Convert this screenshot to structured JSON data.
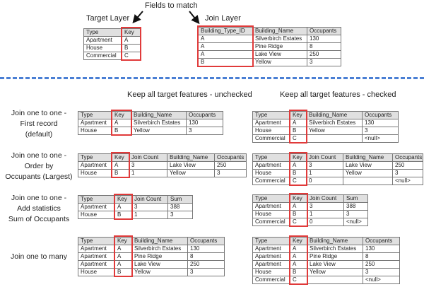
{
  "header": {
    "fields_to_match": "Fields to match",
    "target_layer": "Target Layer",
    "join_layer": "Join Layer"
  },
  "sections": {
    "unchecked": "Keep all target features - unchecked",
    "checked": "Keep all target features - checked"
  },
  "row_labels": [
    [
      "Join one to one -",
      "First record",
      "(default)"
    ],
    [
      "Join one to one -",
      "Order by",
      "Occupants (Largest)"
    ],
    [
      "Join one to one -",
      "Add statistics",
      "Sum of Occupants"
    ],
    [
      "Join one to many"
    ]
  ],
  "colors": {
    "highlight": "#e03a3a",
    "divider": "#4a7fd4",
    "header_bg": "#e0e0e0"
  },
  "tables": {
    "target": {
      "columns": [
        "Type",
        "Key"
      ],
      "rows": [
        [
          "Apartment",
          "A"
        ],
        [
          "House",
          "B"
        ],
        [
          "Commercial",
          "C"
        ]
      ]
    },
    "join": {
      "columns": [
        "Building_Type_ID",
        "Building_Name",
        "Occupants"
      ],
      "rows": [
        [
          "A",
          "Silverbirch Estates",
          "130"
        ],
        [
          "A",
          "Pine Ridge",
          "8"
        ],
        [
          "A",
          "Lake View",
          "250"
        ],
        [
          "B",
          "Yellow",
          "3"
        ]
      ]
    },
    "first_unchecked": {
      "columns": [
        "Type",
        "Key",
        "Building_Name",
        "Occupants"
      ],
      "rows": [
        [
          "Apartment",
          "A",
          "Silverbirch Estates",
          "130"
        ],
        [
          "House",
          "B",
          "Yellow",
          "3"
        ]
      ]
    },
    "first_checked": {
      "columns": [
        "Type",
        "Key",
        "Building_Name",
        "Occupants"
      ],
      "rows": [
        [
          "Apartment",
          "A",
          "Silverbirch Estates",
          "130"
        ],
        [
          "House",
          "B",
          "Yellow",
          "3"
        ],
        [
          "Commercial",
          "C",
          "",
          "<null>"
        ]
      ]
    },
    "order_unchecked": {
      "columns": [
        "Type",
        "Key",
        "Join Count",
        "Building_Name",
        "Occupants"
      ],
      "rows": [
        [
          "Apartment",
          "A",
          "3",
          "Lake View",
          "250"
        ],
        [
          "House",
          "B",
          "1",
          "Yellow",
          "3"
        ]
      ]
    },
    "order_checked": {
      "columns": [
        "Type",
        "Key",
        "Join Count",
        "Building_Name",
        "Occupants"
      ],
      "rows": [
        [
          "Apartment",
          "A",
          "3",
          "Lake View",
          "250"
        ],
        [
          "House",
          "B",
          "1",
          "Yellow",
          "3"
        ],
        [
          "Commercial",
          "C",
          "0",
          "",
          "<null>"
        ]
      ]
    },
    "stats_unchecked": {
      "columns": [
        "Type",
        "Key",
        "Join Count",
        "Sum"
      ],
      "rows": [
        [
          "Apartment",
          "A",
          "3",
          "388"
        ],
        [
          "House",
          "B",
          "1",
          "3"
        ]
      ]
    },
    "stats_checked": {
      "columns": [
        "Type",
        "Key",
        "Join Count",
        "Sum"
      ],
      "rows": [
        [
          "Apartment",
          "A",
          "3",
          "388"
        ],
        [
          "House",
          "B",
          "1",
          "3"
        ],
        [
          "Commercial",
          "C",
          "0",
          "<null>"
        ]
      ]
    },
    "many_unchecked": {
      "columns": [
        "Type",
        "Key",
        "Building_Name",
        "Occupants"
      ],
      "rows": [
        [
          "Apartment",
          "A",
          "Silverbirch Estates",
          "130"
        ],
        [
          "Apartment",
          "A",
          "Pine Ridge",
          "8"
        ],
        [
          "Apartment",
          "A",
          "Lake View",
          "250"
        ],
        [
          "House",
          "B",
          "Yellow",
          "3"
        ]
      ]
    },
    "many_checked": {
      "columns": [
        "Type",
        "Key",
        "Building_Name",
        "Occupants"
      ],
      "rows": [
        [
          "Apartment",
          "A",
          "Silverbirch Estates",
          "130"
        ],
        [
          "Apartment",
          "A",
          "Pine Ridge",
          "8"
        ],
        [
          "Apartment",
          "A",
          "Lake View",
          "250"
        ],
        [
          "House",
          "B",
          "Yellow",
          "3"
        ],
        [
          "Commercial",
          "C",
          "",
          "<null>"
        ]
      ]
    }
  }
}
